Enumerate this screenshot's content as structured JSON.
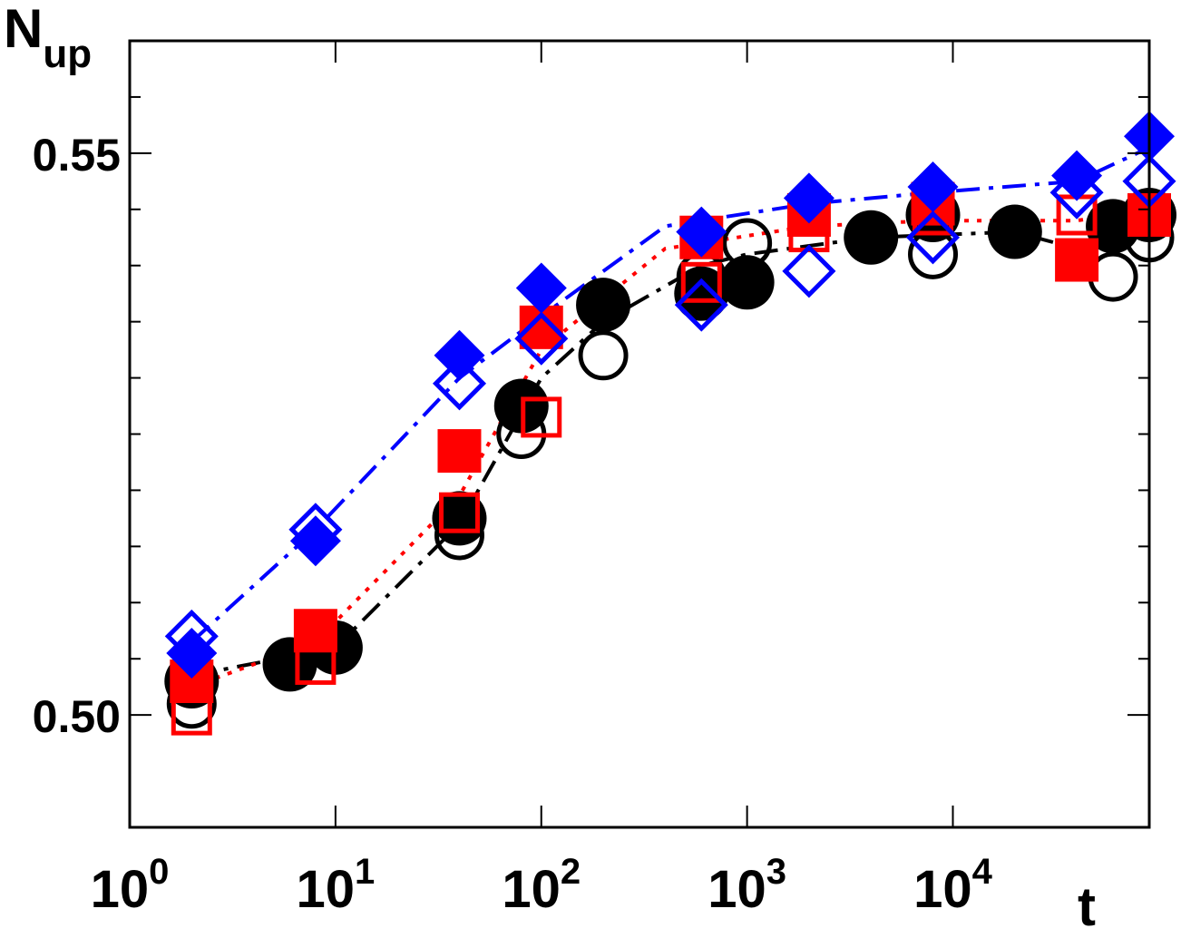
{
  "chart_data": {
    "type": "scatter",
    "title": "",
    "ylabel": "N",
    "ylabel_sub": "up",
    "xlabel": "t",
    "xscale": "log",
    "xlim": [
      1,
      90000
    ],
    "ylim": [
      0.49,
      0.56
    ],
    "x_ticks": [
      {
        "value": 1,
        "base": "10",
        "exp": "0"
      },
      {
        "value": 10,
        "base": "10",
        "exp": "1"
      },
      {
        "value": 100,
        "base": "10",
        "exp": "2"
      },
      {
        "value": 1000,
        "base": "10",
        "exp": "3"
      },
      {
        "value": 10000,
        "base": "10",
        "exp": "4"
      }
    ],
    "y_ticks": [
      {
        "value": 0.5,
        "label": "0.50"
      },
      {
        "value": 0.505,
        "label": ""
      },
      {
        "value": 0.51,
        "label": ""
      },
      {
        "value": 0.515,
        "label": ""
      },
      {
        "value": 0.52,
        "label": ""
      },
      {
        "value": 0.525,
        "label": ""
      },
      {
        "value": 0.53,
        "label": ""
      },
      {
        "value": 0.535,
        "label": ""
      },
      {
        "value": 0.54,
        "label": ""
      },
      {
        "value": 0.545,
        "label": ""
      },
      {
        "value": 0.55,
        "label": "0.55"
      },
      {
        "value": 0.555,
        "label": ""
      }
    ],
    "major_y_ticks": [
      0.5,
      0.55
    ],
    "series": [
      {
        "marker": "circle",
        "filled": true,
        "color": "#000000",
        "size": 30,
        "points": [
          [
            2,
            0.503
          ],
          [
            6,
            0.5045
          ],
          [
            10,
            0.506
          ],
          [
            40,
            0.5175
          ],
          [
            80,
            0.5275
          ],
          [
            200,
            0.5365
          ],
          [
            600,
            0.5375
          ],
          [
            1000,
            0.5385
          ],
          [
            4000,
            0.5425
          ],
          [
            8000,
            0.5445
          ],
          [
            20000,
            0.543
          ],
          [
            60000,
            0.5435
          ],
          [
            90000,
            0.5445
          ]
        ]
      },
      {
        "marker": "circle",
        "filled": false,
        "color": "#000000",
        "size": 25,
        "points": [
          [
            2,
            0.501
          ],
          [
            6,
            0.5045
          ],
          [
            10,
            0.506
          ],
          [
            40,
            0.516
          ],
          [
            80,
            0.525
          ],
          [
            200,
            0.532
          ],
          [
            600,
            0.539
          ],
          [
            1000,
            0.542
          ],
          [
            4000,
            0.5425
          ],
          [
            8000,
            0.541
          ],
          [
            20000,
            0.543
          ],
          [
            60000,
            0.539
          ],
          [
            90000,
            0.5425
          ]
        ]
      },
      {
        "marker": "square",
        "filled": true,
        "color": "#ff0000",
        "size": 24,
        "points": [
          [
            2,
            0.503
          ],
          [
            8,
            0.5075
          ],
          [
            40,
            0.5235
          ],
          [
            100,
            0.5345
          ],
          [
            600,
            0.5425
          ],
          [
            2000,
            0.5445
          ],
          [
            8000,
            0.5455
          ],
          [
            40000,
            0.5405
          ],
          [
            90000,
            0.5445
          ]
        ]
      },
      {
        "marker": "square",
        "filled": false,
        "color": "#ff0000",
        "size": 20,
        "points": [
          [
            2,
            0.5
          ],
          [
            8,
            0.5045
          ],
          [
            40,
            0.518
          ],
          [
            100,
            0.5265
          ],
          [
            600,
            0.5385
          ],
          [
            2000,
            0.543
          ],
          [
            8000,
            0.5445
          ],
          [
            40000,
            0.5445
          ],
          [
            90000,
            0.5445
          ]
        ]
      },
      {
        "marker": "diamond",
        "filled": true,
        "color": "#0000ff",
        "size": 28,
        "points": [
          [
            2,
            0.5055
          ],
          [
            8,
            0.5155
          ],
          [
            40,
            0.532
          ],
          [
            100,
            0.538
          ],
          [
            600,
            0.543
          ],
          [
            2000,
            0.546
          ],
          [
            8000,
            0.547
          ],
          [
            40000,
            0.548
          ],
          [
            90000,
            0.5515
          ]
        ]
      },
      {
        "marker": "diamond",
        "filled": false,
        "color": "#0000ff",
        "size": 26,
        "points": [
          [
            2,
            0.507
          ],
          [
            8,
            0.5165
          ],
          [
            40,
            0.5295
          ],
          [
            100,
            0.5335
          ],
          [
            600,
            0.5365
          ],
          [
            2000,
            0.5395
          ],
          [
            8000,
            0.5425
          ],
          [
            40000,
            0.5465
          ],
          [
            90000,
            0.5475
          ]
        ]
      }
    ],
    "lines": [
      {
        "style": "dash-dot",
        "color": "#000000",
        "points": [
          [
            2,
            0.5035
          ],
          [
            10,
            0.506
          ],
          [
            40,
            0.517
          ],
          [
            100,
            0.53
          ],
          [
            200,
            0.535
          ],
          [
            600,
            0.54
          ],
          [
            1000,
            0.541
          ],
          [
            4000,
            0.5425
          ],
          [
            20000,
            0.543
          ],
          [
            40000,
            0.5415
          ],
          [
            90000,
            0.5435
          ]
        ]
      },
      {
        "style": "dotted",
        "color": "#ff0000",
        "points": [
          [
            2,
            0.5025
          ],
          [
            8,
            0.5065
          ],
          [
            40,
            0.5195
          ],
          [
            100,
            0.5325
          ],
          [
            400,
            0.5415
          ],
          [
            2000,
            0.5435
          ],
          [
            8000,
            0.544
          ],
          [
            40000,
            0.544
          ],
          [
            90000,
            0.545
          ]
        ]
      },
      {
        "style": "dash-dot",
        "color": "#0000ff",
        "points": [
          [
            2,
            0.5065
          ],
          [
            8,
            0.5165
          ],
          [
            40,
            0.53
          ],
          [
            100,
            0.5355
          ],
          [
            400,
            0.5435
          ],
          [
            2000,
            0.5455
          ],
          [
            8000,
            0.5465
          ],
          [
            40000,
            0.5475
          ],
          [
            90000,
            0.5505
          ]
        ]
      }
    ]
  }
}
